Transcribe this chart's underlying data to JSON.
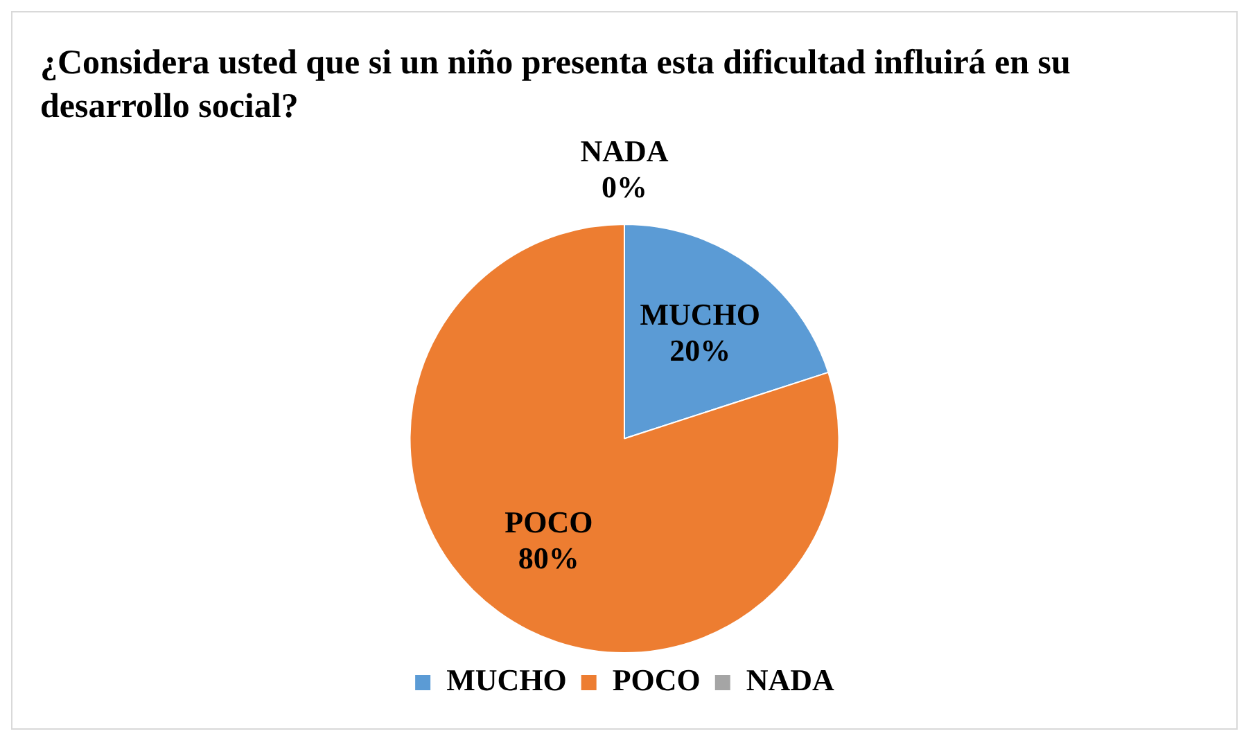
{
  "chart_data": {
    "type": "pie",
    "title": "¿Considera usted que si un niño presenta esta dificultad influirá en su desarrollo social?",
    "categories": [
      "MUCHO",
      "POCO",
      "NADA"
    ],
    "values": [
      20,
      80,
      0
    ],
    "value_labels": [
      "20%",
      "80%",
      "0%"
    ],
    "colors": [
      "#5b9bd5",
      "#ed7d31",
      "#a5a5a5"
    ],
    "legend": "bottom"
  }
}
